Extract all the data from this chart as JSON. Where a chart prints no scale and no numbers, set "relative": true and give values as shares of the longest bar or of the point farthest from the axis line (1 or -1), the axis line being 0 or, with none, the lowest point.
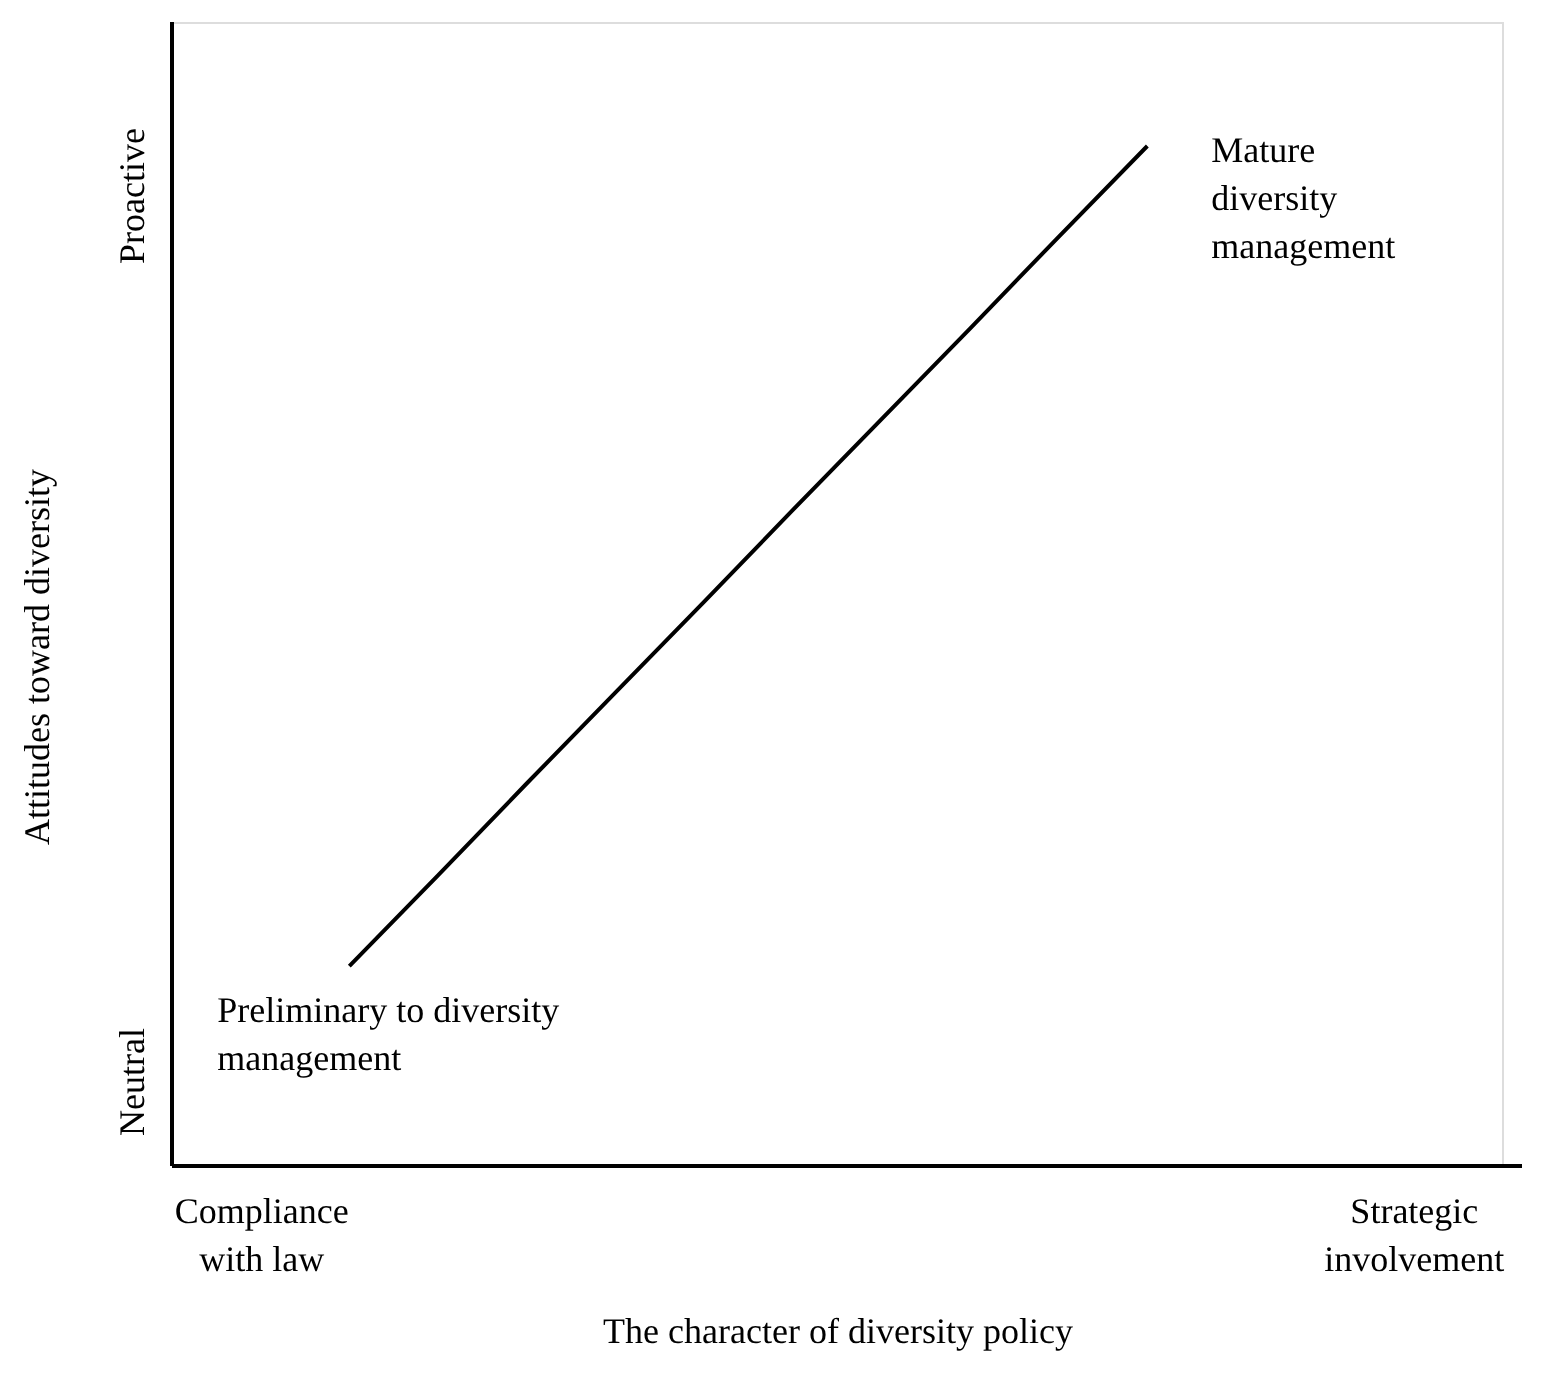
{
  "chart_data": {
    "type": "line",
    "xlabel": "The character of diversity policy",
    "ylabel": "Attitudes toward diversity",
    "relative": true,
    "categories": [
      "Compliance\nwith law",
      null,
      null,
      null,
      null,
      null,
      null,
      null,
      null,
      null,
      null,
      null,
      null,
      "Strategic\ninvolvement"
    ],
    "series": [
      {
        "color": "#000000",
        "values": [
          null,
          0.196,
          0.285,
          0.375,
          0.464,
          0.553,
          0.643,
          0.732,
          0.821,
          0.911,
          1.0,
          null,
          null,
          null
        ]
      }
    ],
    "annotations": [
      "Neutral",
      "Proactive",
      "Preliminary to diversity\nmanagement",
      "Mature\ndiversity\nmanagement"
    ],
    "marker": "none",
    "line_style": "solid"
  }
}
